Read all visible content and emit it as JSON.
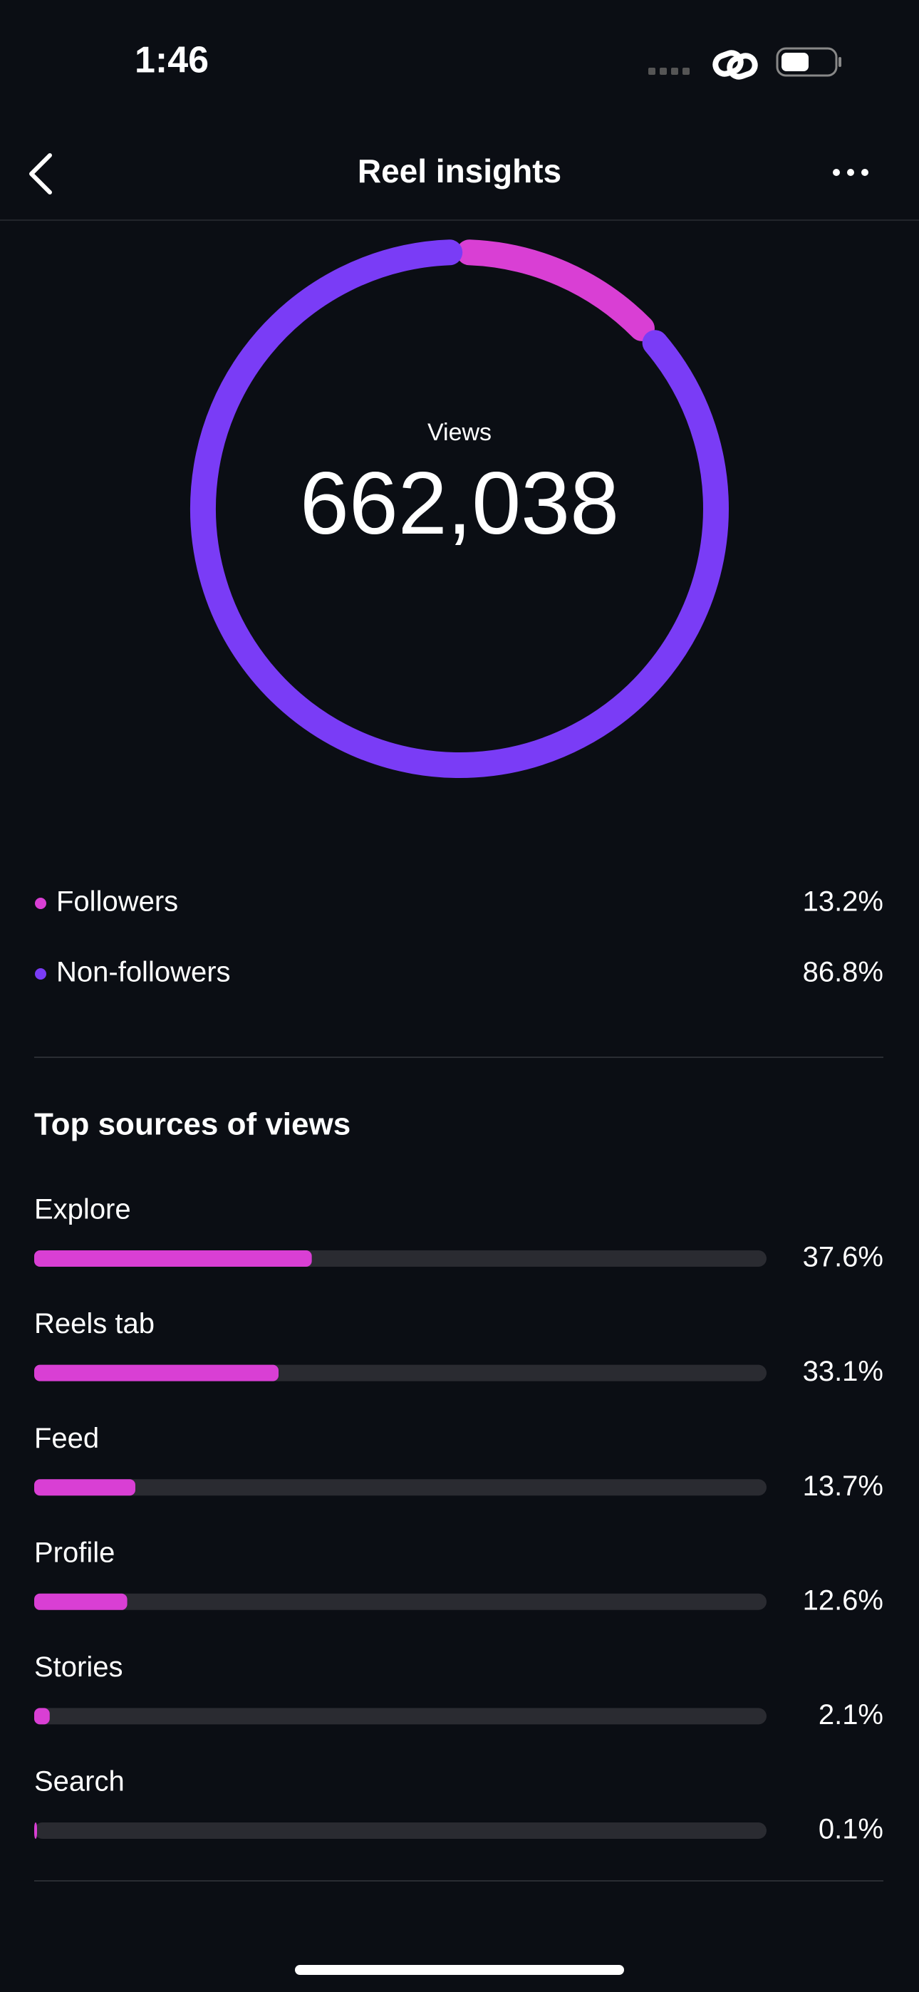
{
  "status_bar": {
    "time": "1:46"
  },
  "header": {
    "title": "Reel insights"
  },
  "views": {
    "label": "Views",
    "total": "662,038"
  },
  "audience": [
    {
      "name": "Followers",
      "value": 13.2,
      "label": "13.2%",
      "color": "#d93fd4"
    },
    {
      "name": "Non-followers",
      "value": 86.8,
      "label": "86.8%",
      "color": "#7a3cf6"
    }
  ],
  "top_sources": {
    "title": "Top sources of views",
    "color": "#d93fd4",
    "track_color": "#2a2b31",
    "items": [
      {
        "name": "Explore",
        "value": 37.6,
        "label": "37.6%"
      },
      {
        "name": "Reels tab",
        "value": 33.1,
        "label": "33.1%"
      },
      {
        "name": "Feed",
        "value": 13.7,
        "label": "13.7%"
      },
      {
        "name": "Profile",
        "value": 12.6,
        "label": "12.6%"
      },
      {
        "name": "Stories",
        "value": 2.1,
        "label": "2.1%"
      },
      {
        "name": "Search",
        "value": 0.1,
        "label": "0.1%"
      }
    ]
  }
}
